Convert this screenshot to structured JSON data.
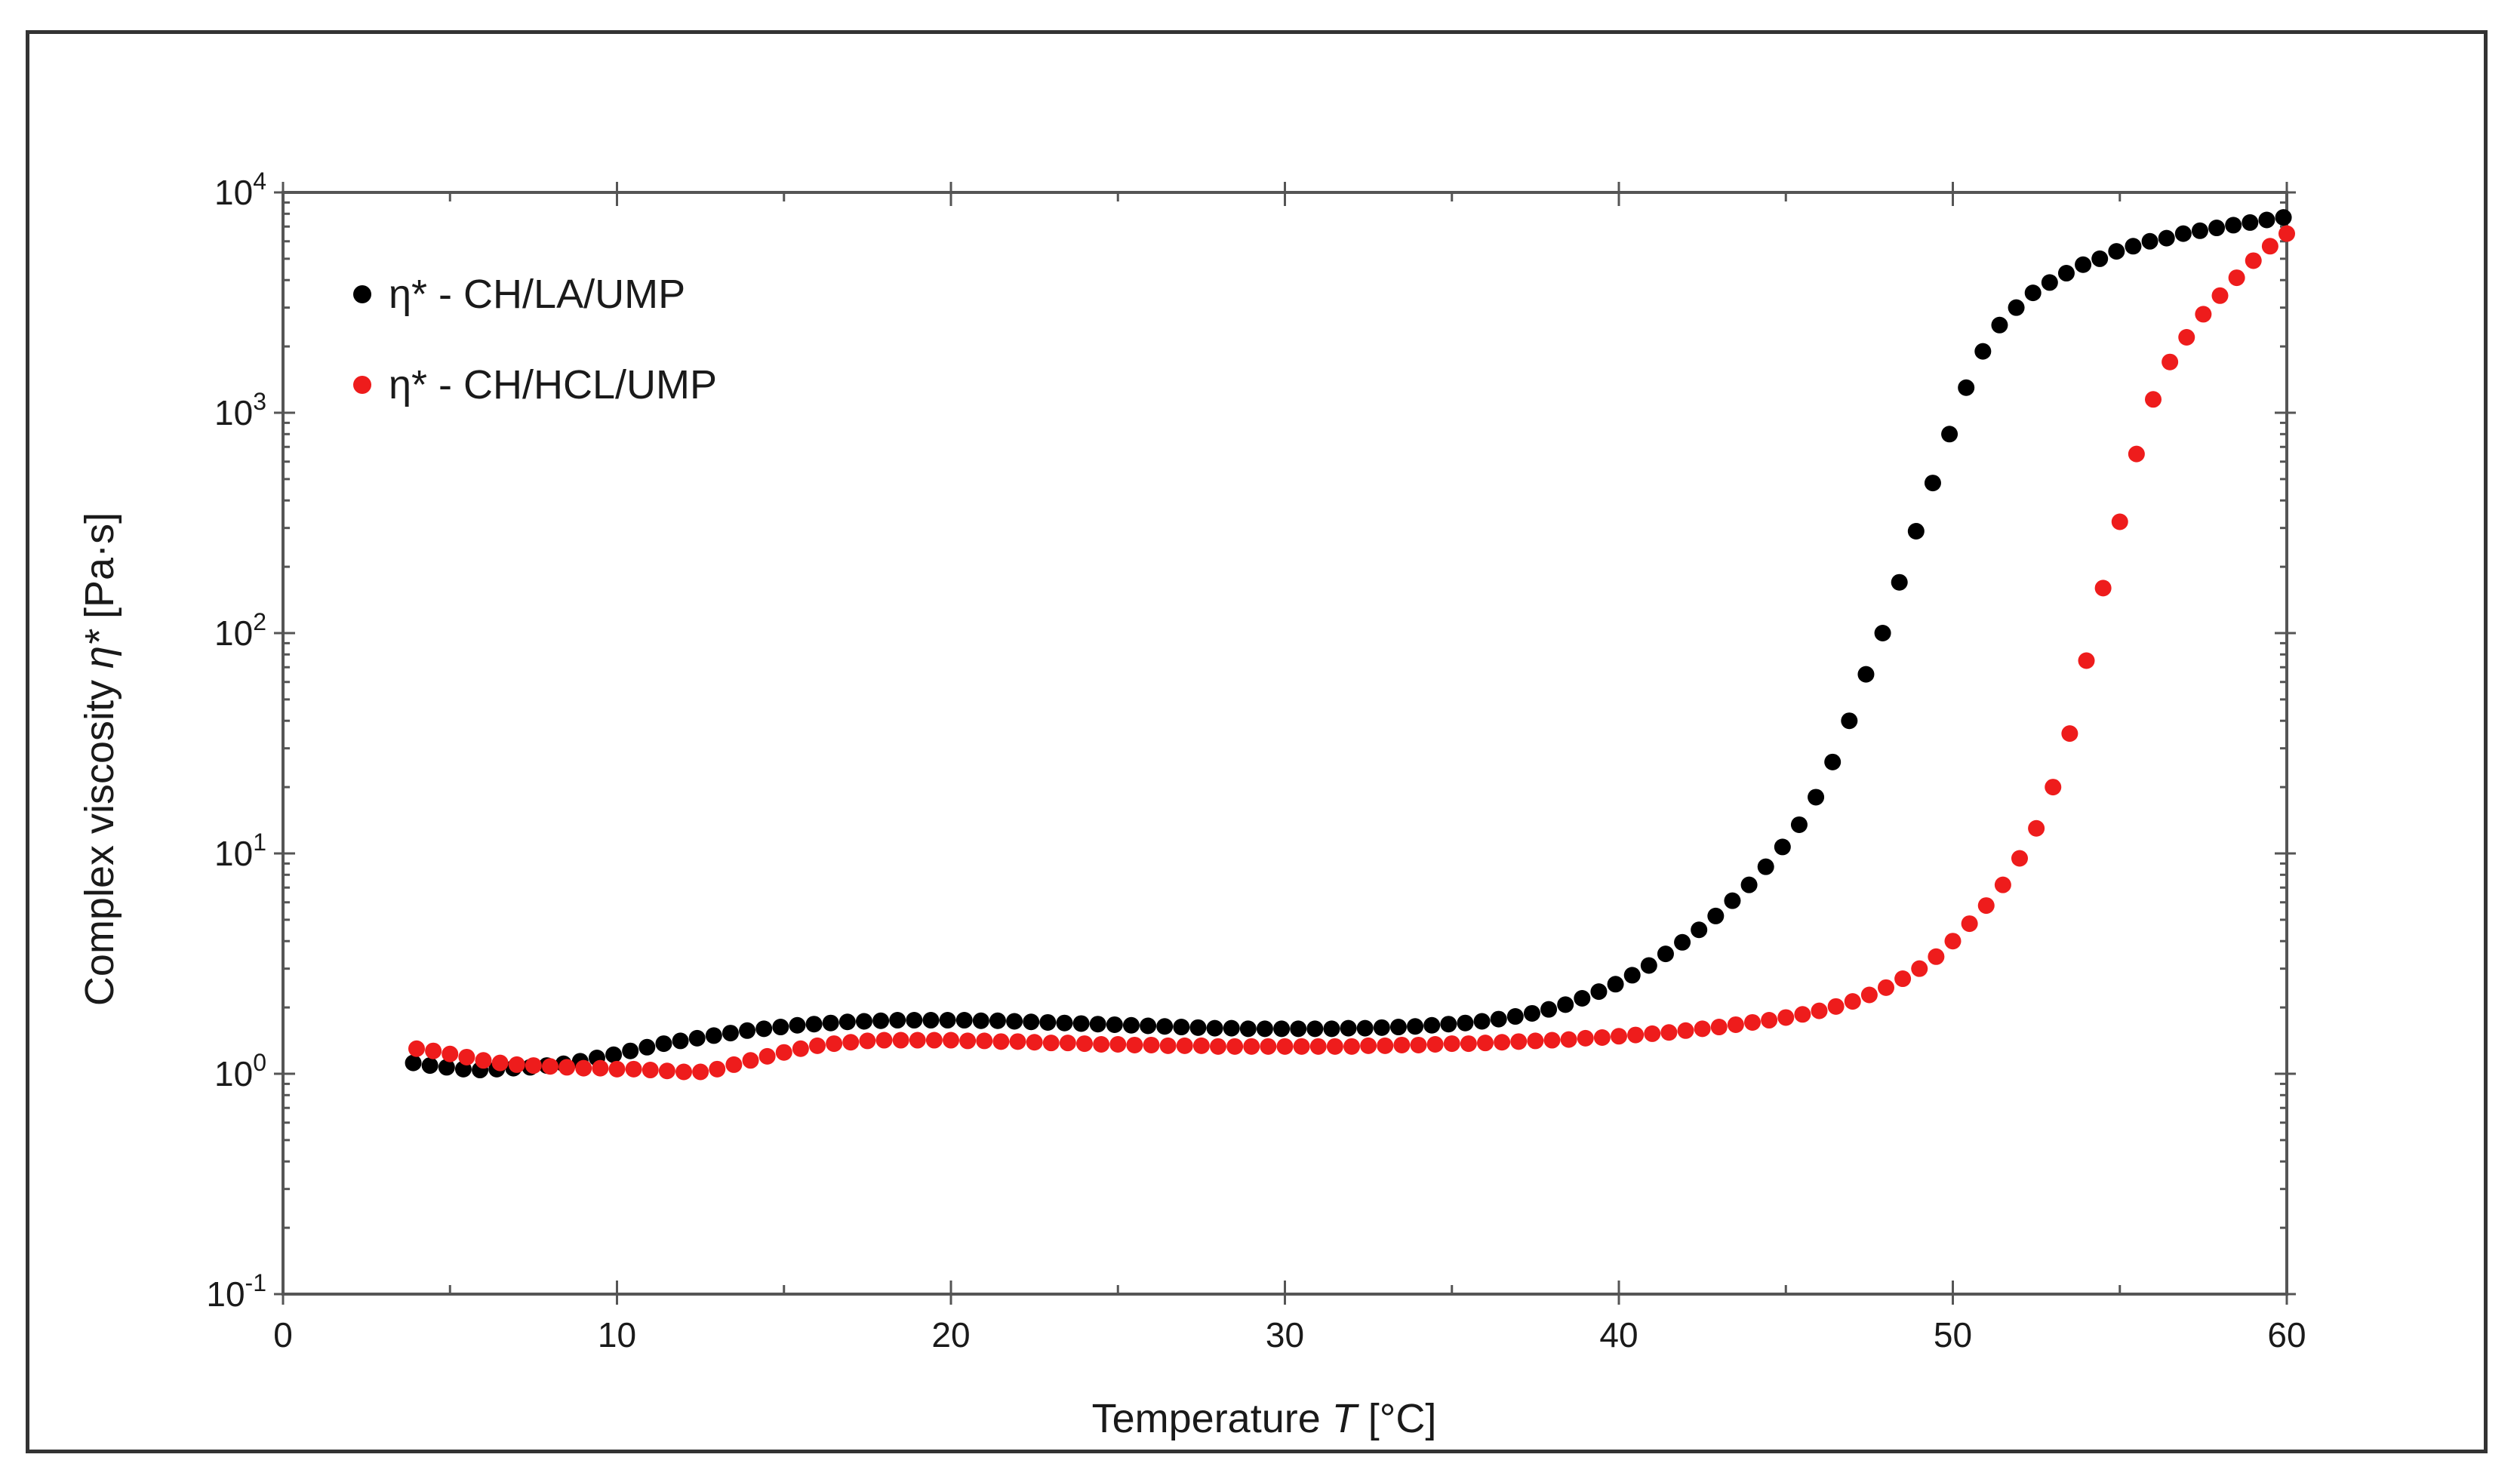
{
  "chart_data": {
    "type": "scatter",
    "title": "",
    "xlabel_prefix": "Temperature ",
    "xlabel_symbol": "T",
    "xlabel_suffix": " [°C]",
    "ylabel_prefix": "Complex viscosity ",
    "ylabel_symbol": "η*",
    "ylabel_suffix": " [Pa·s]",
    "xlim": [
      0,
      60
    ],
    "ylim": [
      0.1,
      10000
    ],
    "yscale": "log",
    "x_ticks": [
      0,
      10,
      20,
      30,
      40,
      50,
      60
    ],
    "x_tick_labels": [
      "0",
      "10",
      "20",
      "30",
      "40",
      "50",
      "60"
    ],
    "y_ticks": [
      {
        "value": 0.1,
        "base": "10",
        "exp": "-1"
      },
      {
        "value": 1,
        "base": "10",
        "exp": "0"
      },
      {
        "value": 10,
        "base": "10",
        "exp": "1"
      },
      {
        "value": 100,
        "base": "10",
        "exp": "2"
      },
      {
        "value": 1000,
        "base": "10",
        "exp": "3"
      },
      {
        "value": 10000,
        "base": "10",
        "exp": "4"
      }
    ],
    "legend_position": "top-left",
    "series": [
      {
        "name": "η* - CH/LA/UMP",
        "color": "#000000",
        "points": [
          [
            3.9,
            1.12
          ],
          [
            4.4,
            1.09
          ],
          [
            4.9,
            1.07
          ],
          [
            5.4,
            1.05
          ],
          [
            5.9,
            1.04
          ],
          [
            6.4,
            1.05
          ],
          [
            6.9,
            1.06
          ],
          [
            7.4,
            1.07
          ],
          [
            7.9,
            1.09
          ],
          [
            8.4,
            1.11
          ],
          [
            8.9,
            1.14
          ],
          [
            9.4,
            1.18
          ],
          [
            9.9,
            1.22
          ],
          [
            10.4,
            1.27
          ],
          [
            10.9,
            1.32
          ],
          [
            11.4,
            1.37
          ],
          [
            11.9,
            1.41
          ],
          [
            12.4,
            1.45
          ],
          [
            12.9,
            1.49
          ],
          [
            13.4,
            1.53
          ],
          [
            13.9,
            1.57
          ],
          [
            14.4,
            1.6
          ],
          [
            14.9,
            1.63
          ],
          [
            15.4,
            1.66
          ],
          [
            15.9,
            1.68
          ],
          [
            16.4,
            1.7
          ],
          [
            16.9,
            1.72
          ],
          [
            17.4,
            1.73
          ],
          [
            17.9,
            1.74
          ],
          [
            18.4,
            1.75
          ],
          [
            18.9,
            1.75
          ],
          [
            19.4,
            1.75
          ],
          [
            19.9,
            1.75
          ],
          [
            20.4,
            1.75
          ],
          [
            20.9,
            1.74
          ],
          [
            21.4,
            1.74
          ],
          [
            21.9,
            1.73
          ],
          [
            22.4,
            1.72
          ],
          [
            22.9,
            1.71
          ],
          [
            23.4,
            1.7
          ],
          [
            23.9,
            1.69
          ],
          [
            24.4,
            1.68
          ],
          [
            24.9,
            1.67
          ],
          [
            25.4,
            1.66
          ],
          [
            25.9,
            1.65
          ],
          [
            26.4,
            1.64
          ],
          [
            26.9,
            1.63
          ],
          [
            27.4,
            1.62
          ],
          [
            27.9,
            1.61
          ],
          [
            28.4,
            1.61
          ],
          [
            28.9,
            1.6
          ],
          [
            29.4,
            1.6
          ],
          [
            29.9,
            1.6
          ],
          [
            30.4,
            1.6
          ],
          [
            30.9,
            1.6
          ],
          [
            31.4,
            1.6
          ],
          [
            31.9,
            1.61
          ],
          [
            32.4,
            1.61
          ],
          [
            32.9,
            1.62
          ],
          [
            33.4,
            1.63
          ],
          [
            33.9,
            1.64
          ],
          [
            34.4,
            1.66
          ],
          [
            34.9,
            1.68
          ],
          [
            35.4,
            1.7
          ],
          [
            35.9,
            1.73
          ],
          [
            36.4,
            1.77
          ],
          [
            36.9,
            1.82
          ],
          [
            37.4,
            1.88
          ],
          [
            37.9,
            1.96
          ],
          [
            38.4,
            2.06
          ],
          [
            38.9,
            2.2
          ],
          [
            39.4,
            2.36
          ],
          [
            39.9,
            2.55
          ],
          [
            40.4,
            2.8
          ],
          [
            40.9,
            3.1
          ],
          [
            41.4,
            3.5
          ],
          [
            41.9,
            3.95
          ],
          [
            42.4,
            4.5
          ],
          [
            42.9,
            5.2
          ],
          [
            43.4,
            6.1
          ],
          [
            43.9,
            7.2
          ],
          [
            44.4,
            8.7
          ],
          [
            44.9,
            10.7
          ],
          [
            45.4,
            13.5
          ],
          [
            45.9,
            18
          ],
          [
            46.4,
            26
          ],
          [
            46.9,
            40
          ],
          [
            47.4,
            65
          ],
          [
            47.9,
            100
          ],
          [
            48.4,
            170
          ],
          [
            48.9,
            290
          ],
          [
            49.4,
            480
          ],
          [
            49.9,
            800
          ],
          [
            50.4,
            1300
          ],
          [
            50.9,
            1900
          ],
          [
            51.4,
            2500
          ],
          [
            51.9,
            3000
          ],
          [
            52.4,
            3500
          ],
          [
            52.9,
            3900
          ],
          [
            53.4,
            4300
          ],
          [
            53.9,
            4700
          ],
          [
            54.4,
            5000
          ],
          [
            54.9,
            5400
          ],
          [
            55.4,
            5700
          ],
          [
            55.9,
            6000
          ],
          [
            56.4,
            6200
          ],
          [
            56.9,
            6500
          ],
          [
            57.4,
            6700
          ],
          [
            57.9,
            6900
          ],
          [
            58.4,
            7100
          ],
          [
            58.9,
            7300
          ],
          [
            59.4,
            7500
          ],
          [
            59.9,
            7700
          ]
        ]
      },
      {
        "name": "η* - CH/HCL/UMP",
        "color": "#ee1c1c",
        "points": [
          [
            4.0,
            1.3
          ],
          [
            4.5,
            1.27
          ],
          [
            5.0,
            1.23
          ],
          [
            5.5,
            1.19
          ],
          [
            6.0,
            1.15
          ],
          [
            6.5,
            1.12
          ],
          [
            7.0,
            1.1
          ],
          [
            7.5,
            1.09
          ],
          [
            8.0,
            1.08
          ],
          [
            8.5,
            1.07
          ],
          [
            9.0,
            1.06
          ],
          [
            9.5,
            1.06
          ],
          [
            10.0,
            1.05
          ],
          [
            10.5,
            1.05
          ],
          [
            11.0,
            1.04
          ],
          [
            11.5,
            1.03
          ],
          [
            12.0,
            1.02
          ],
          [
            12.5,
            1.02
          ],
          [
            13.0,
            1.05
          ],
          [
            13.5,
            1.1
          ],
          [
            14.0,
            1.15
          ],
          [
            14.5,
            1.2
          ],
          [
            15.0,
            1.25
          ],
          [
            15.5,
            1.3
          ],
          [
            16.0,
            1.34
          ],
          [
            16.5,
            1.37
          ],
          [
            17.0,
            1.39
          ],
          [
            17.5,
            1.41
          ],
          [
            18.0,
            1.42
          ],
          [
            18.5,
            1.42
          ],
          [
            19.0,
            1.42
          ],
          [
            19.5,
            1.42
          ],
          [
            20.0,
            1.42
          ],
          [
            20.5,
            1.41
          ],
          [
            21.0,
            1.41
          ],
          [
            21.5,
            1.4
          ],
          [
            22.0,
            1.4
          ],
          [
            22.5,
            1.39
          ],
          [
            23.0,
            1.38
          ],
          [
            23.5,
            1.38
          ],
          [
            24.0,
            1.37
          ],
          [
            24.5,
            1.36
          ],
          [
            25.0,
            1.36
          ],
          [
            25.5,
            1.35
          ],
          [
            26.0,
            1.35
          ],
          [
            26.5,
            1.34
          ],
          [
            27.0,
            1.34
          ],
          [
            27.5,
            1.34
          ],
          [
            28.0,
            1.33
          ],
          [
            28.5,
            1.33
          ],
          [
            29.0,
            1.33
          ],
          [
            29.5,
            1.33
          ],
          [
            30.0,
            1.33
          ],
          [
            30.5,
            1.33
          ],
          [
            31.0,
            1.33
          ],
          [
            31.5,
            1.33
          ],
          [
            32.0,
            1.33
          ],
          [
            32.5,
            1.34
          ],
          [
            33.0,
            1.34
          ],
          [
            33.5,
            1.35
          ],
          [
            34.0,
            1.35
          ],
          [
            34.5,
            1.36
          ],
          [
            35.0,
            1.37
          ],
          [
            35.5,
            1.37
          ],
          [
            36.0,
            1.38
          ],
          [
            36.5,
            1.39
          ],
          [
            37.0,
            1.4
          ],
          [
            37.5,
            1.41
          ],
          [
            38.0,
            1.42
          ],
          [
            38.5,
            1.43
          ],
          [
            39.0,
            1.45
          ],
          [
            39.5,
            1.46
          ],
          [
            40.0,
            1.48
          ],
          [
            40.5,
            1.5
          ],
          [
            41.0,
            1.52
          ],
          [
            41.5,
            1.54
          ],
          [
            42.0,
            1.57
          ],
          [
            42.5,
            1.6
          ],
          [
            43.0,
            1.63
          ],
          [
            43.5,
            1.67
          ],
          [
            44.0,
            1.71
          ],
          [
            44.5,
            1.75
          ],
          [
            45.0,
            1.8
          ],
          [
            45.5,
            1.86
          ],
          [
            46.0,
            1.93
          ],
          [
            46.5,
            2.02
          ],
          [
            47.0,
            2.13
          ],
          [
            47.5,
            2.28
          ],
          [
            48.0,
            2.46
          ],
          [
            48.5,
            2.7
          ],
          [
            49.0,
            3.0
          ],
          [
            49.5,
            3.4
          ],
          [
            50.0,
            4.0
          ],
          [
            50.5,
            4.8
          ],
          [
            51.0,
            5.8
          ],
          [
            51.5,
            7.2
          ],
          [
            52.0,
            9.5
          ],
          [
            52.5,
            13
          ],
          [
            53.0,
            20
          ],
          [
            53.5,
            35
          ],
          [
            54.0,
            75
          ],
          [
            54.5,
            160
          ],
          [
            55.0,
            320
          ],
          [
            55.5,
            650
          ],
          [
            56.0,
            1150
          ],
          [
            56.5,
            1700
          ],
          [
            57.0,
            2200
          ],
          [
            57.5,
            2800
          ],
          [
            58.0,
            3400
          ],
          [
            58.5,
            4100
          ],
          [
            59.0,
            4900
          ],
          [
            59.5,
            5700
          ],
          [
            60.0,
            6500
          ]
        ]
      }
    ]
  }
}
